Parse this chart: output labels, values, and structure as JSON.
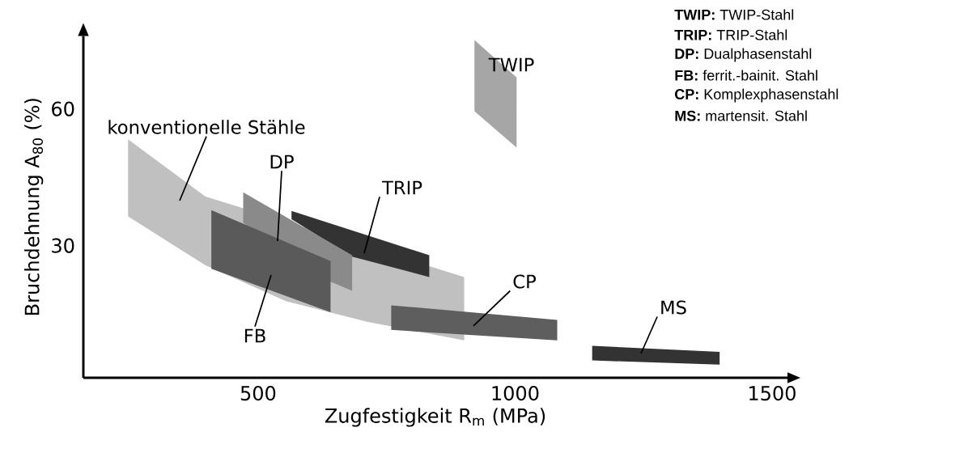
{
  "chart_data": {
    "type": "area",
    "xlabel": "Zugfestigkeit R$_{m}$ (MPa)",
    "ylabel": "Bruchdehnung A$_{80}$ (%)",
    "xlim": [
      160,
      1530
    ],
    "ylim": [
      1,
      76
    ],
    "xticks": [
      500,
      1000,
      1500
    ],
    "yticks": [
      30,
      60
    ],
    "series": [
      {
        "name": "konventionelle Stähle",
        "color": "#c0c0c0",
        "x": [
          247,
          397,
          901,
          901,
          712,
          554,
          397,
          247
        ],
        "values": [
          53.3,
          40.8,
          23.1,
          9.2,
          13.3,
          17.8,
          25.7,
          36.4
        ]
      },
      {
        "name": "TRIP",
        "color": "#333333",
        "x": [
          565,
          833,
          833,
          683,
          565
        ],
        "values": [
          37.6,
          27.9,
          23.1,
          27.6,
          35.8
        ]
      },
      {
        "name": "DP",
        "color": "#8a8a8a",
        "x": [
          471,
          683,
          683,
          641,
          471
        ],
        "values": [
          41.7,
          27.9,
          20.1,
          22.1,
          35.0
        ]
      },
      {
        "name": "FB",
        "color": "#5a5a5a",
        "x": [
          409,
          641,
          641,
          409
        ],
        "values": [
          37.8,
          26.6,
          15.4,
          24.9
        ]
      },
      {
        "name": "CP",
        "color": "#5e5e5e",
        "x": [
          759,
          1082,
          1082,
          759
        ],
        "values": [
          16.9,
          13.7,
          9.2,
          11.5
        ]
      },
      {
        "name": "MS",
        "color": "#333333",
        "x": [
          1150,
          1398,
          1398,
          1150
        ],
        "values": [
          8.0,
          6.7,
          3.9,
          4.8
        ]
      },
      {
        "name": "TWIP",
        "color": "#a6a6a6",
        "x": [
          921,
          1003,
          1003,
          921
        ],
        "values": [
          75.1,
          66.9,
          51.5,
          59.5
        ]
      }
    ],
    "annotations": [
      "**TWIP:** TWIP-Stahl",
      "**TRIP:** TRIP-Stahl",
      "**DP:** Dualphasenstahl",
      "**FB:** ferrit.-bainit. Stahl",
      "**CP:** Komplexphasenstahl",
      "**MS:** martensit. Stahl"
    ]
  }
}
